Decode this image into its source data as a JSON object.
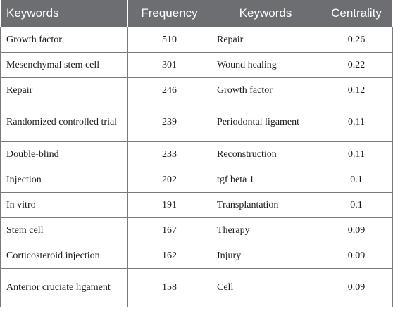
{
  "table": {
    "headers": [
      "Keywords",
      "Frequency",
      "Keywords",
      "Centrality"
    ],
    "rows": [
      {
        "kw1": "Growth factor",
        "freq": "510",
        "kw2": "Repair",
        "cent": "0.26"
      },
      {
        "kw1": "Mesenchymal stem cell",
        "freq": "301",
        "kw2": "Wound healing",
        "cent": "0.22"
      },
      {
        "kw1": "Repair",
        "freq": "246",
        "kw2": "Growth factor",
        "cent": "0.12"
      },
      {
        "kw1": "Randomized controlled trial",
        "freq": "239",
        "kw2": "Periodontal ligament",
        "cent": "0.11"
      },
      {
        "kw1": "Double-blind",
        "freq": "233",
        "kw2": "Reconstruction",
        "cent": "0.11"
      },
      {
        "kw1": "Injection",
        "freq": "202",
        "kw2": "tgf beta 1",
        "cent": "0.1"
      },
      {
        "kw1": "In vitro",
        "freq": "191",
        "kw2": "Transplantation",
        "cent": "0.1"
      },
      {
        "kw1": "Stem cell",
        "freq": "167",
        "kw2": "Therapy",
        "cent": "0.09"
      },
      {
        "kw1": "Corticosteroid injection",
        "freq": "162",
        "kw2": "Injury",
        "cent": "0.09"
      },
      {
        "kw1": "Anterior cruciate ligament",
        "freq": "158",
        "kw2": "Cell",
        "cent": "0.09"
      }
    ]
  }
}
